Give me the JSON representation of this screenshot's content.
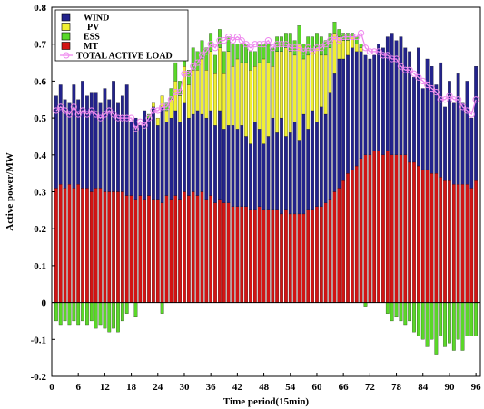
{
  "chart_data": {
    "type": "bar",
    "subtype": "stacked bar with line overlay",
    "xlabel": "Time period(15min)",
    "ylabel": "Active power/MW",
    "xlim": [
      0,
      97
    ],
    "ylim": [
      -0.2,
      0.8
    ],
    "x_ticks": [
      0,
      6,
      12,
      18,
      24,
      30,
      36,
      42,
      48,
      54,
      60,
      66,
      72,
      78,
      84,
      90,
      96
    ],
    "x_tick_labels": [
      "0",
      "6",
      "12",
      "18",
      "24",
      "30",
      "36",
      "42",
      "48",
      "54",
      "60",
      "66",
      "72",
      "78",
      "84",
      "90",
      "96"
    ],
    "y_ticks": [
      -0.2,
      -0.1,
      0,
      0.1,
      0.2,
      0.3,
      0.4,
      0.5,
      0.6,
      0.7,
      0.8
    ],
    "y_tick_labels": [
      "-0.2",
      "-0.1",
      "0",
      "0.1",
      "0.2",
      "0.3",
      "0.4",
      "0.5",
      "0.6",
      "0.7",
      "0.8"
    ],
    "grid": false,
    "legend_position": "top-left",
    "colors": {
      "WIND": "#23238c",
      "PV": "#f0f032",
      "ESS": "#5ad828",
      "MT": "#d21414",
      "TOTAL ACTIVE LOAD": "#ee88ee"
    },
    "periods": [
      1,
      2,
      3,
      4,
      5,
      6,
      7,
      8,
      9,
      10,
      11,
      12,
      13,
      14,
      15,
      16,
      17,
      18,
      19,
      20,
      21,
      22,
      23,
      24,
      25,
      26,
      27,
      28,
      29,
      30,
      31,
      32,
      33,
      34,
      35,
      36,
      37,
      38,
      39,
      40,
      41,
      42,
      43,
      44,
      45,
      46,
      47,
      48,
      49,
      50,
      51,
      52,
      53,
      54,
      55,
      56,
      57,
      58,
      59,
      60,
      61,
      62,
      63,
      64,
      65,
      66,
      67,
      68,
      69,
      70,
      71,
      72,
      73,
      74,
      75,
      76,
      77,
      78,
      79,
      80,
      81,
      82,
      83,
      84,
      85,
      86,
      87,
      88,
      89,
      90,
      91,
      92,
      93,
      94,
      95,
      96
    ],
    "series": [
      {
        "name": "MT",
        "values": [
          0.31,
          0.32,
          0.31,
          0.32,
          0.31,
          0.32,
          0.31,
          0.31,
          0.3,
          0.31,
          0.31,
          0.3,
          0.3,
          0.3,
          0.3,
          0.3,
          0.29,
          0.29,
          0.28,
          0.29,
          0.28,
          0.29,
          0.28,
          0.28,
          0.27,
          0.29,
          0.28,
          0.29,
          0.28,
          0.3,
          0.29,
          0.3,
          0.29,
          0.3,
          0.28,
          0.29,
          0.27,
          0.28,
          0.27,
          0.27,
          0.26,
          0.26,
          0.26,
          0.26,
          0.25,
          0.25,
          0.26,
          0.25,
          0.25,
          0.25,
          0.25,
          0.24,
          0.25,
          0.24,
          0.24,
          0.24,
          0.24,
          0.25,
          0.25,
          0.26,
          0.26,
          0.27,
          0.28,
          0.3,
          0.31,
          0.33,
          0.35,
          0.36,
          0.37,
          0.39,
          0.4,
          0.4,
          0.41,
          0.41,
          0.4,
          0.41,
          0.4,
          0.4,
          0.4,
          0.4,
          0.38,
          0.38,
          0.37,
          0.36,
          0.36,
          0.35,
          0.35,
          0.34,
          0.33,
          0.33,
          0.32,
          0.32,
          0.32,
          0.32,
          0.31,
          0.33
        ]
      },
      {
        "name": "WIND",
        "values": [
          0.25,
          0.27,
          0.24,
          0.22,
          0.28,
          0.23,
          0.29,
          0.25,
          0.27,
          0.26,
          0.23,
          0.28,
          0.25,
          0.3,
          0.24,
          0.26,
          0.3,
          0.2,
          0.22,
          0.19,
          0.24,
          0.21,
          0.25,
          0.2,
          0.26,
          0.2,
          0.22,
          0.23,
          0.21,
          0.24,
          0.21,
          0.21,
          0.23,
          0.21,
          0.22,
          0.23,
          0.21,
          0.24,
          0.2,
          0.21,
          0.22,
          0.21,
          0.22,
          0.19,
          0.18,
          0.24,
          0.21,
          0.18,
          0.2,
          0.25,
          0.21,
          0.26,
          0.2,
          0.22,
          0.25,
          0.2,
          0.27,
          0.22,
          0.27,
          0.23,
          0.27,
          0.24,
          0.29,
          0.32,
          0.35,
          0.33,
          0.32,
          0.33,
          0.31,
          0.29,
          0.27,
          0.26,
          0.26,
          0.29,
          0.29,
          0.31,
          0.33,
          0.31,
          0.32,
          0.29,
          0.3,
          0.23,
          0.32,
          0.22,
          0.3,
          0.29,
          0.24,
          0.31,
          0.2,
          0.27,
          0.22,
          0.3,
          0.22,
          0.28,
          0.19,
          0.31
        ]
      },
      {
        "name": "PV",
        "values": [
          0,
          0,
          0,
          0,
          0,
          0,
          0,
          0,
          0,
          0,
          0,
          0,
          0,
          0,
          0,
          0,
          0,
          0,
          0,
          0,
          0,
          0,
          0.01,
          0.02,
          0.03,
          0.03,
          0.05,
          0.08,
          0.07,
          0.1,
          0.09,
          0.12,
          0.11,
          0.15,
          0.13,
          0.16,
          0.14,
          0.17,
          0.15,
          0.2,
          0.16,
          0.19,
          0.17,
          0.2,
          0.2,
          0.15,
          0.18,
          0.23,
          0.2,
          0.14,
          0.22,
          0.18,
          0.24,
          0.22,
          0.18,
          0.26,
          0.15,
          0.2,
          0.16,
          0.2,
          0.14,
          0.16,
          0.12,
          0.11,
          0.06,
          0.05,
          0.04,
          0.03,
          0.02,
          0.01,
          0,
          0,
          0,
          0,
          0,
          0,
          0,
          0,
          0,
          0,
          0,
          0,
          0,
          0,
          0,
          0,
          0,
          0,
          0,
          0,
          0,
          0,
          0,
          0,
          0,
          0
        ]
      },
      {
        "name": "ESS",
        "values": [
          -0.05,
          -0.06,
          -0.05,
          -0.06,
          -0.05,
          -0.06,
          -0.05,
          -0.06,
          -0.05,
          -0.07,
          -0.06,
          -0.07,
          -0.08,
          -0.07,
          -0.08,
          -0.05,
          -0.03,
          0,
          -0.04,
          0,
          0,
          0.01,
          0,
          0,
          -0.03,
          0.02,
          0.03,
          0.05,
          0.04,
          0.06,
          0.04,
          0.06,
          0.05,
          0.05,
          0.06,
          0.05,
          0.05,
          0.05,
          0.06,
          0.04,
          0.06,
          0.04,
          0.05,
          0.05,
          0.05,
          0.04,
          0.05,
          0.04,
          0.05,
          0.05,
          0.04,
          0.04,
          0.04,
          0.05,
          0.04,
          0.05,
          0.04,
          0.05,
          0.04,
          0.04,
          0.05,
          0.04,
          0.04,
          0.03,
          0.02,
          0.02,
          0.02,
          0.01,
          0.02,
          0.01,
          -0.01,
          0,
          0,
          0,
          0,
          -0.03,
          -0.05,
          -0.04,
          -0.05,
          -0.06,
          -0.05,
          -0.08,
          -0.09,
          -0.1,
          -0.12,
          -0.1,
          -0.14,
          -0.09,
          -0.12,
          -0.11,
          -0.13,
          -0.1,
          -0.13,
          -0.09,
          -0.09,
          -0.09
        ]
      }
    ],
    "total_active_load": [
      0.52,
      0.53,
      0.52,
      0.51,
      0.53,
      0.51,
      0.52,
      0.51,
      0.52,
      0.51,
      0.5,
      0.51,
      0.52,
      0.51,
      0.5,
      0.5,
      0.5,
      0.5,
      0.47,
      0.49,
      0.48,
      0.5,
      0.52,
      0.52,
      0.53,
      0.53,
      0.55,
      0.57,
      0.57,
      0.62,
      0.62,
      0.64,
      0.65,
      0.67,
      0.68,
      0.7,
      0.69,
      0.71,
      0.71,
      0.72,
      0.71,
      0.72,
      0.71,
      0.7,
      0.69,
      0.7,
      0.7,
      0.7,
      0.71,
      0.69,
      0.7,
      0.7,
      0.7,
      0.69,
      0.69,
      0.69,
      0.68,
      0.69,
      0.68,
      0.69,
      0.69,
      0.7,
      0.71,
      0.72,
      0.71,
      0.72,
      0.72,
      0.72,
      0.72,
      0.73,
      0.69,
      0.68,
      0.68,
      0.68,
      0.67,
      0.67,
      0.66,
      0.66,
      0.64,
      0.63,
      0.63,
      0.62,
      0.61,
      0.6,
      0.59,
      0.58,
      0.57,
      0.55,
      0.55,
      0.56,
      0.55,
      0.55,
      0.53,
      0.52,
      0.51,
      0.55
    ]
  }
}
